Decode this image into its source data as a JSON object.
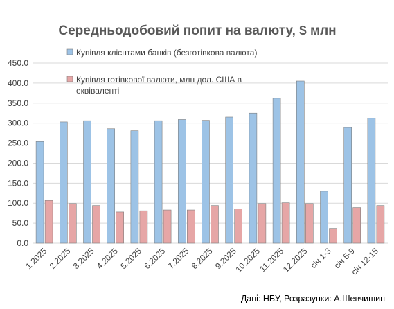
{
  "chart_data": {
    "type": "bar",
    "title": "Середньодобовий попит на валюту, $ млн",
    "categories": [
      "1.2025",
      "2.2025",
      "3.2025",
      "4.2025",
      "5.2025",
      "6.2025",
      "7.2025",
      "8.2025",
      "9.2025",
      "10.2025",
      "11.2025",
      "12.2025",
      "січ 1-3",
      "січ 5-9",
      "січ 12-15"
    ],
    "series": [
      {
        "name": "Купівля клієнтами банків (безготівкова валюта)",
        "color": "#9dc3e6",
        "values": [
          254,
          303,
          306,
          286,
          281,
          306,
          309,
          307,
          315,
          325,
          362,
          405,
          130,
          289,
          312
        ]
      },
      {
        "name": "Купівля готівкової валюти, млн дол. США в еквіваленті",
        "color": "#e6a6a6",
        "values": [
          107,
          99,
          94,
          78,
          81,
          83,
          83,
          94,
          86,
          99,
          101,
          99,
          37,
          89,
          94
        ]
      }
    ],
    "yticks": [
      "0.0",
      "50.0",
      "100.0",
      "150.0",
      "200.0",
      "250.0",
      "300.0",
      "350.0",
      "400.0",
      "450.0"
    ],
    "ylim": [
      0,
      450
    ],
    "grid": true,
    "legend": "top-left",
    "source_note": "Дані: НБУ, Розразунки: А.Шевчишин"
  }
}
